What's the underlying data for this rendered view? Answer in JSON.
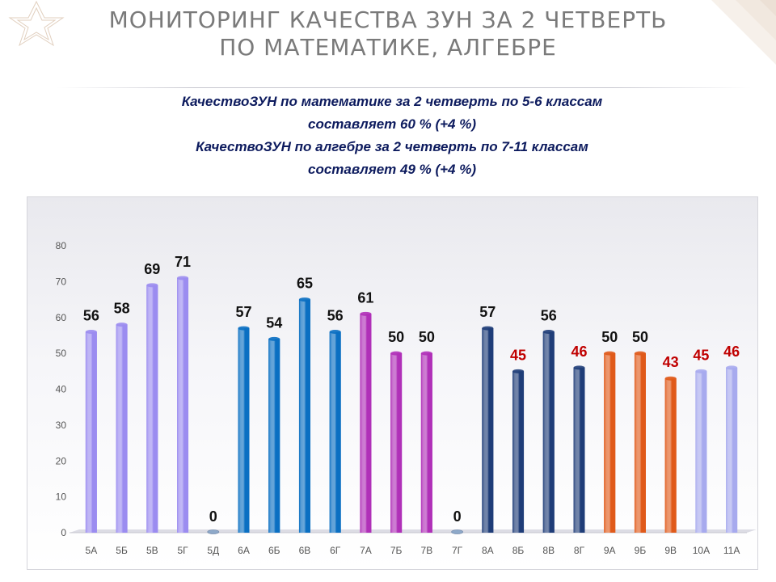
{
  "slide": {
    "title_lines": [
      "Мониторинг  качества ЗУН за 2  четверть",
      "по  математике, алгебре"
    ],
    "subtitle_lines": [
      "КачествоЗУН по математике  за 2 четверть  по 5-6 классам",
      "составляет  60 % (+4 %)",
      "КачествоЗУН по алгебре  за 2 четверть  по 7-11 классам",
      "составляет  49 % (+4 %)"
    ]
  },
  "colors": {
    "title": "#7a7a7a",
    "subtitle": "#0d1b5e",
    "label_default": "#111111",
    "label_highlight": "#c00000"
  },
  "chart_data": {
    "type": "bar",
    "categories": [
      "5А",
      "5Б",
      "5В",
      "5Г",
      "5Д",
      "6А",
      "6Б",
      "6В",
      "6Г",
      "7А",
      "7Б",
      "7В",
      "7Г",
      "8А",
      "8Б",
      "8В",
      "8Г",
      "9А",
      "9Б",
      "9В",
      "10А",
      "11А"
    ],
    "values": [
      56,
      58,
      69,
      71,
      0,
      57,
      54,
      65,
      56,
      61,
      50,
      50,
      0,
      57,
      45,
      56,
      46,
      50,
      50,
      43,
      45,
      46
    ],
    "data_labels": [
      "56",
      "58",
      "69",
      "71",
      "0",
      "57",
      "54",
      "65",
      "56",
      "61",
      "50",
      "50",
      "0",
      "57",
      "45",
      "56",
      "46",
      "50",
      "50",
      "43",
      "45",
      "46"
    ],
    "highlighted_labels": [
      "8Б",
      "8Г",
      "9В",
      "10А",
      "11А"
    ],
    "bar_colors": [
      "#9b8cf0",
      "#9b8cf0",
      "#9b8cf0",
      "#9b8cf0",
      "#8ea9c9",
      "#0a6fc2",
      "#0a6fc2",
      "#0a6fc2",
      "#0a6fc2",
      "#b030b8",
      "#b030b8",
      "#b030b8",
      "#8ea9c9",
      "#1f3d78",
      "#1f3d78",
      "#1f3d78",
      "#1f3d78",
      "#e05a1a",
      "#e05a1a",
      "#e05a1a",
      "#a7aaee",
      "#a7aaee"
    ],
    "ylim": [
      0,
      80
    ],
    "yticks": [
      0,
      10,
      20,
      30,
      40,
      50,
      60,
      70,
      80
    ],
    "title": "",
    "xlabel": "",
    "ylabel": "",
    "grid": false,
    "legend": "none"
  }
}
